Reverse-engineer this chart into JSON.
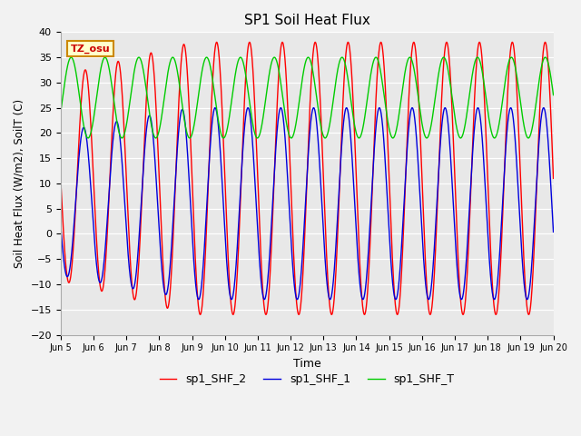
{
  "title": "SP1 Soil Heat Flux",
  "xlabel": "Time",
  "ylabel": "Soil Heat Flux (W/m2), SoilT (C)",
  "ylim": [
    -20,
    40
  ],
  "yticks": [
    -20,
    -15,
    -10,
    -5,
    0,
    5,
    10,
    15,
    20,
    25,
    30,
    35,
    40
  ],
  "fig_bg": "#f2f2f2",
  "ax_bg": "#e8e8e8",
  "line_red": "#ff0000",
  "line_blue": "#0000dd",
  "line_green": "#00cc00",
  "annotation_text": "TZ_osu",
  "annotation_bg": "#ffffcc",
  "annotation_border": "#cc8800",
  "legend_labels": [
    "sp1_SHF_2",
    "sp1_SHF_1",
    "sp1_SHF_T"
  ],
  "x_tick_labels": [
    "Jun 5",
    "Jun 6",
    "Jun 7",
    "Jun 8",
    "Jun 9",
    "Jun 10",
    "Jun 11",
    "Jun 12",
    "Jun 13",
    "Jun 14",
    "Jun 15",
    "Jun 16",
    "Jun 17",
    "Jun 18",
    "Jun 19",
    "Jun 20"
  ],
  "n_days": 15,
  "points_per_day": 200
}
